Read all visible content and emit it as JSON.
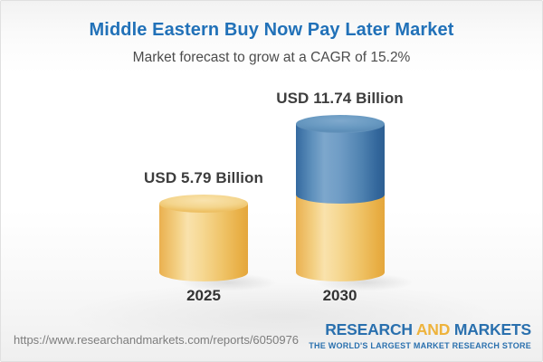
{
  "header": {
    "title": "Middle Eastern Buy Now Pay Later Market",
    "subtitle": "Market forecast to grow at a CAGR of 15.2%"
  },
  "chart_data": {
    "type": "bar",
    "variant": "3d-cylinder-stacked",
    "title": "Middle Eastern Buy Now Pay Later Market",
    "subtitle": "Market forecast to grow at a CAGR of 15.2%",
    "unit": "USD Billion",
    "categories": [
      "2025",
      "2030"
    ],
    "values": [
      5.79,
      11.74
    ],
    "value_labels": [
      "USD 5.79 Billion",
      "USD 11.74 Billion"
    ],
    "series": [
      {
        "name": "base-2025-level",
        "values": [
          5.79,
          5.79
        ],
        "color": "#f0c473"
      },
      {
        "name": "growth-to-2030",
        "values": [
          0,
          5.95
        ],
        "color": "#4d83b3"
      }
    ],
    "cagr_percent": 15.2,
    "axes": "none",
    "gridlines": false,
    "legend": "none",
    "colors": {
      "gold": "#f0c473",
      "blue": "#4d83b3",
      "title_blue": "#2171b8",
      "label_dark": "#3d3d3d"
    }
  },
  "footer": {
    "url": "https://www.researchandmarkets.com/reports/6050976",
    "logo": {
      "word1": "RESEARCH",
      "word2": "AND",
      "word3": "MARKETS",
      "tagline": "THE WORLD'S LARGEST MARKET RESEARCH STORE",
      "blue": "#2a70ae",
      "gold": "#eeb33c"
    }
  }
}
